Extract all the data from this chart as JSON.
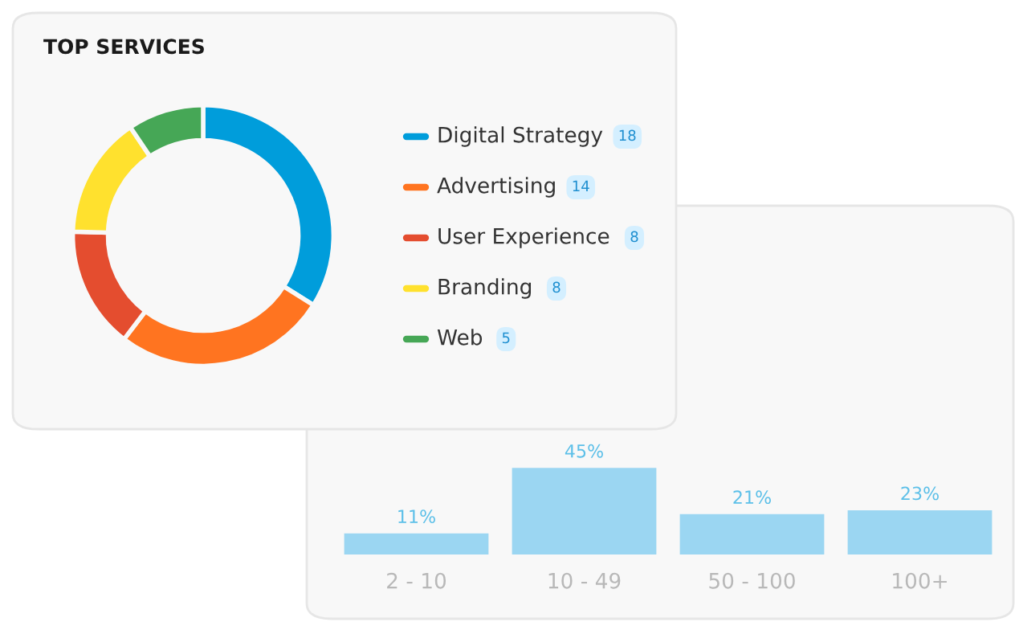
{
  "chart_data": [
    {
      "type": "donut",
      "title": "TOP SERVICES",
      "categories": [
        "Digital Strategy",
        "Advertising",
        "User Experience",
        "Branding",
        "Web"
      ],
      "values": [
        18,
        14,
        8,
        8,
        5
      ],
      "colors": [
        "#009ddb",
        "#ff7420",
        "#e44d2f",
        "#ffe12e",
        "#46a756"
      ],
      "legend": "right",
      "data_labels": true
    },
    {
      "type": "bar",
      "categories": [
        "2 - 10",
        "10 - 49",
        "50 - 100",
        "100+"
      ],
      "values": [
        11,
        45,
        21,
        23
      ],
      "value_labels": [
        "11%",
        "45%",
        "21%",
        "23%"
      ],
      "color": "#9bd6f2"
    }
  ]
}
